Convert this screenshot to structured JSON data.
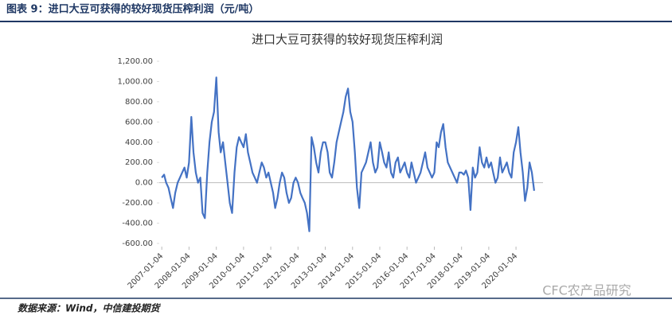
{
  "header": "图表 9：进口大豆可获得的较好现货压榨利润（元/吨）",
  "source": "数据来源：Wind，中信建投期货",
  "watermark": "CFC农产品研究",
  "chart_data": {
    "type": "line",
    "title": "进口大豆可获得的较好现货压榨利润",
    "x": [
      "2007-01-04",
      "2007-02-04",
      "2007-03-04",
      "2007-04-04",
      "2007-05-04",
      "2007-06-04",
      "2007-07-04",
      "2007-08-04",
      "2007-09-04",
      "2007-10-04",
      "2007-11-04",
      "2007-12-04",
      "2008-01-04",
      "2008-02-04",
      "2008-03-04",
      "2008-04-04",
      "2008-05-04",
      "2008-06-04",
      "2008-07-04",
      "2008-08-04",
      "2008-09-04",
      "2008-10-04",
      "2008-11-04",
      "2008-12-04",
      "2009-01-04",
      "2009-02-04",
      "2009-03-04",
      "2009-04-04",
      "2009-05-04",
      "2009-06-04",
      "2009-07-04",
      "2009-08-04",
      "2009-09-04",
      "2009-10-04",
      "2009-11-04",
      "2009-12-04",
      "2010-01-04",
      "2010-02-04",
      "2010-03-04",
      "2010-04-04",
      "2010-05-04",
      "2010-06-04",
      "2010-07-04",
      "2010-08-04",
      "2010-09-04",
      "2010-10-04",
      "2010-11-04",
      "2010-12-04",
      "2011-01-04",
      "2011-02-04",
      "2011-03-04",
      "2011-04-04",
      "2011-05-04",
      "2011-06-04",
      "2011-07-04",
      "2011-08-04",
      "2011-09-04",
      "2011-10-04",
      "2011-11-04",
      "2011-12-04",
      "2012-01-04",
      "2012-02-04",
      "2012-03-04",
      "2012-04-04",
      "2012-05-04",
      "2012-06-04",
      "2012-07-04",
      "2012-08-04",
      "2012-09-04",
      "2012-10-04",
      "2012-11-04",
      "2012-12-04",
      "2013-01-04",
      "2013-02-04",
      "2013-03-04",
      "2013-04-04",
      "2013-05-04",
      "2013-06-04",
      "2013-07-04",
      "2013-08-04",
      "2013-09-04",
      "2013-10-04",
      "2013-11-04",
      "2013-12-04",
      "2014-01-04",
      "2014-02-04",
      "2014-03-04",
      "2014-04-04",
      "2014-05-04",
      "2014-06-04",
      "2014-07-04",
      "2014-08-04",
      "2014-09-04",
      "2014-10-04",
      "2014-11-04",
      "2014-12-04",
      "2015-01-04",
      "2015-02-04",
      "2015-03-04",
      "2015-04-04",
      "2015-05-04",
      "2015-06-04",
      "2015-07-04",
      "2015-08-04",
      "2015-09-04",
      "2015-10-04",
      "2015-11-04",
      "2015-12-04",
      "2016-01-04",
      "2016-02-04",
      "2016-03-04",
      "2016-04-04",
      "2016-05-04",
      "2016-06-04",
      "2016-07-04",
      "2016-08-04",
      "2016-09-04",
      "2016-10-04",
      "2016-11-04",
      "2016-12-04",
      "2017-01-04",
      "2017-02-04",
      "2017-03-04",
      "2017-04-04",
      "2017-05-04",
      "2017-06-04",
      "2017-07-04",
      "2017-08-04",
      "2017-09-04",
      "2017-10-04",
      "2017-11-04",
      "2017-12-04",
      "2018-01-04",
      "2018-02-04",
      "2018-03-04",
      "2018-04-04",
      "2018-05-04",
      "2018-06-04",
      "2018-07-04",
      "2018-08-04",
      "2018-09-04",
      "2018-10-04",
      "2018-11-04",
      "2018-12-04",
      "2019-01-04",
      "2019-02-04",
      "2019-03-04",
      "2019-04-04",
      "2019-05-04",
      "2019-06-04",
      "2019-07-04",
      "2019-08-04",
      "2019-09-04",
      "2019-10-04",
      "2019-11-04",
      "2019-12-04",
      "2020-01-04",
      "2020-02-04",
      "2020-03-04",
      "2020-04-04",
      "2020-05-04",
      "2020-06-04",
      "2020-07-04",
      "2020-08-04",
      "2020-09-04"
    ],
    "series": [
      {
        "color": "#4472c4",
        "values": [
          50,
          80,
          0,
          -50,
          -150,
          -250,
          -100,
          0,
          50,
          100,
          150,
          50,
          200,
          650,
          300,
          100,
          0,
          50,
          -300,
          -350,
          100,
          400,
          600,
          700,
          1040,
          500,
          300,
          400,
          200,
          0,
          -200,
          -300,
          100,
          350,
          450,
          400,
          350,
          480,
          300,
          200,
          100,
          50,
          0,
          100,
          200,
          150,
          50,
          100,
          0,
          -100,
          -250,
          -150,
          0,
          100,
          50,
          -100,
          -200,
          -150,
          0,
          50,
          0,
          -100,
          -150,
          -200,
          -300,
          -480,
          450,
          350,
          200,
          100,
          300,
          400,
          400,
          300,
          100,
          50,
          200,
          400,
          500,
          600,
          700,
          850,
          930,
          700,
          600,
          300,
          -50,
          -250,
          100,
          150,
          200,
          300,
          400,
          200,
          100,
          150,
          400,
          300,
          200,
          150,
          300,
          100,
          50,
          200,
          250,
          100,
          150,
          200,
          100,
          50,
          200,
          100,
          0,
          50,
          100,
          200,
          300,
          150,
          100,
          50,
          100,
          400,
          350,
          500,
          580,
          350,
          200,
          150,
          100,
          50,
          0,
          100,
          100,
          80,
          120,
          50,
          -270,
          150,
          50,
          100,
          350,
          200,
          150,
          250,
          150,
          200,
          100,
          0,
          50,
          250,
          100,
          150,
          200,
          100,
          50,
          300,
          400,
          550,
          300,
          100,
          -180,
          -50,
          200,
          100,
          -80
        ]
      }
    ],
    "xlim": [
      "2006-12-01",
      "2020-12-31"
    ],
    "xticks": [
      "2007-01-04",
      "2008-01-04",
      "2009-01-04",
      "2010-01-04",
      "2011-01-04",
      "2012-01-04",
      "2013-01-04",
      "2014-01-04",
      "2015-01-04",
      "2016-01-04",
      "2017-01-04",
      "2018-01-04",
      "2019-01-04",
      "2020-01-04"
    ],
    "ylim": [
      -600,
      1200
    ],
    "yticks": [
      {
        "value": -600,
        "label": "-600.00"
      },
      {
        "value": -400,
        "label": "-400.00"
      },
      {
        "value": -200,
        "label": "-200.00"
      },
      {
        "value": 0,
        "label": "0.00"
      },
      {
        "value": 200,
        "label": "200.00"
      },
      {
        "value": 400,
        "label": "400.00"
      },
      {
        "value": 600,
        "label": "600.00"
      },
      {
        "value": 800,
        "label": "800.00"
      },
      {
        "value": 1000,
        "label": "1,000.00"
      },
      {
        "value": 1200,
        "label": "1,200.00"
      }
    ]
  }
}
